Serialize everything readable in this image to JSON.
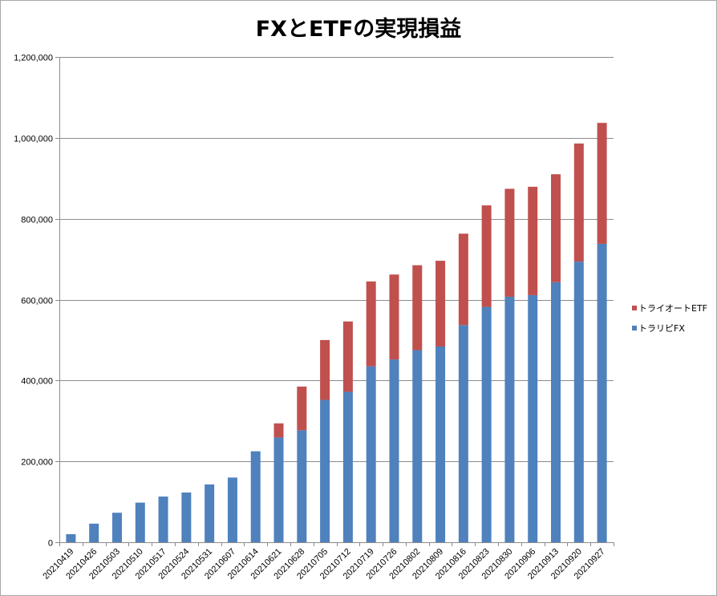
{
  "chart_data": {
    "type": "bar",
    "stacked": true,
    "title": "FXとETFの実現損益",
    "xlabel": "",
    "ylabel": "",
    "ylim": [
      0,
      1200000
    ],
    "y_ticks": [
      0,
      200000,
      400000,
      600000,
      800000,
      1000000,
      1200000
    ],
    "y_tick_labels": [
      "0",
      "200,000",
      "400,000",
      "600,000",
      "800,000",
      "1,000,000",
      "1,200,000"
    ],
    "grid": true,
    "legend_position": "right",
    "categories": [
      "20210419",
      "20210426",
      "20210503",
      "20210510",
      "20210517",
      "20210524",
      "20210531",
      "20210607",
      "20210614",
      "20210621",
      "20210628",
      "20210705",
      "20210712",
      "20210719",
      "20210726",
      "20210802",
      "20210809",
      "20210816",
      "20210823",
      "20210830",
      "20210906",
      "20210913",
      "20210920",
      "20210927"
    ],
    "series": [
      {
        "name": "トラリピFX",
        "color": "#4f81bd",
        "values": [
          20000,
          46000,
          73000,
          98000,
          113000,
          123000,
          143000,
          160000,
          225000,
          259000,
          277000,
          352000,
          372000,
          435000,
          452000,
          475000,
          484000,
          537000,
          582000,
          607000,
          611000,
          643000,
          694000,
          738000
        ]
      },
      {
        "name": "トライオートETF",
        "color": "#c0504d",
        "values": [
          0,
          0,
          0,
          0,
          0,
          0,
          0,
          0,
          0,
          35000,
          108000,
          148000,
          174000,
          210000,
          210000,
          210000,
          212000,
          226000,
          251000,
          267000,
          268000,
          267000,
          292000,
          299000
        ]
      }
    ]
  },
  "colors": {
    "grid": "#8c8c8c",
    "axis": "#8c8c8c"
  }
}
